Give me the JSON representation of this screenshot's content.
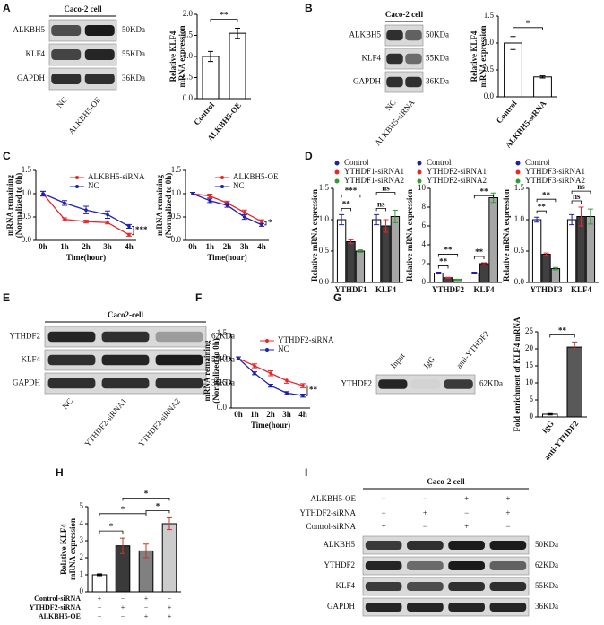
{
  "panel_labels": [
    "A",
    "B",
    "C",
    "D",
    "E",
    "F",
    "G",
    "H",
    "I"
  ],
  "blots": [
    {
      "title": "Caco-2 cell",
      "rows": [
        "ALKBH5",
        "KLF4",
        "GAPDH"
      ],
      "sizes": [
        "50KDa",
        "55KDa",
        "36KDa"
      ],
      "lanes": [
        "NC",
        "ALKBH5-OE"
      ]
    },
    {
      "title": "Caco-2 cell",
      "rows": [
        "ALKBH5",
        "KLF4",
        "GAPDH"
      ],
      "sizes": [
        "50KDa",
        "55KDa",
        "36KDa"
      ],
      "lanes": [
        "NC",
        "ALKBH5-siRNA"
      ]
    },
    {
      "title": "Caco2-cell",
      "rows": [
        "YTHDF2",
        "KLF4",
        "GAPDH"
      ],
      "sizes": [
        "62KDa",
        "55KDa",
        "36KDa"
      ],
      "lanes": [
        "NC",
        "YTHDF2-siRNA1",
        "YTHDF2-siRNA2"
      ]
    },
    {
      "rows": [
        "YTHDF2"
      ],
      "sizes": [
        "62KDa"
      ],
      "lanes": [
        "Input",
        "IgG",
        "anti-YTHDF2"
      ]
    },
    {
      "title": "Caco-2 cell",
      "conditions": [
        {
          "name": "ALKBH5-OE",
          "marks": [
            "−",
            "−",
            "+",
            "+"
          ]
        },
        {
          "name": "YTHDF2-siRNA",
          "marks": [
            "−",
            "+",
            "−",
            "+"
          ]
        },
        {
          "name": "Control-siRNA",
          "marks": [
            "+",
            "−",
            "+",
            "−"
          ]
        }
      ],
      "rows": [
        "ALKBH5",
        "YTHDF2",
        "KLF4",
        "GAPDH"
      ],
      "sizes": [
        "50KDa",
        "62KDa",
        "55KDa",
        "36KDa"
      ]
    }
  ],
  "chart_data": [
    {
      "type": "bar",
      "ylabel": [
        "Relative KLF4",
        "mRNA expression"
      ],
      "categories": [
        "Control",
        "ALKBH5-OE"
      ],
      "values": [
        1.0,
        1.55
      ],
      "errors": [
        0.12,
        0.12
      ],
      "bar_colors": [
        "#ffffff",
        "#ffffff"
      ],
      "ylim": [
        0,
        2
      ],
      "yticks": [
        {
          "value": 0,
          "label": "0.0"
        },
        {
          "value": 0.5,
          "label": "0.5"
        },
        {
          "value": 1,
          "label": "1.0"
        },
        {
          "value": 1.5,
          "label": "1.5"
        },
        {
          "value": 2,
          "label": "2.0"
        }
      ],
      "annotations": [
        "**"
      ]
    },
    {
      "type": "bar",
      "ylabel": [
        "Relative KLF4",
        "mRNA expression"
      ],
      "categories": [
        "Control",
        "ALKBH5-siRNA"
      ],
      "values": [
        1.0,
        0.37
      ],
      "errors": [
        0.12,
        0.02
      ],
      "bar_colors": [
        "#ffffff",
        "#ffffff"
      ],
      "ylim": [
        0,
        1.5
      ],
      "yticks": [
        {
          "value": 0,
          "label": "0.0"
        },
        {
          "value": 0.5,
          "label": "0.5"
        },
        {
          "value": 1,
          "label": "1.0"
        },
        {
          "value": 1.5,
          "label": "1.5"
        }
      ],
      "annotations": [
        "*"
      ]
    },
    {
      "type": "line",
      "ylabel": [
        "mRNA remaining",
        "(Normalized to 0h)"
      ],
      "xlabel": "Time(hour)",
      "categories": [
        "0h",
        "1h",
        "2h",
        "3h",
        "4h"
      ],
      "series": [
        {
          "name": "ALKBH5-siRNA",
          "color": "#e8262a",
          "values": [
            1.0,
            0.45,
            0.4,
            0.38,
            0.12
          ],
          "errors": [
            0.05,
            0.03,
            0.03,
            0.03,
            0.03
          ]
        },
        {
          "name": "NC",
          "color": "#1f1fb4",
          "values": [
            1.0,
            0.8,
            0.65,
            0.55,
            0.3
          ],
          "errors": [
            0.05,
            0.05,
            0.08,
            0.08,
            0.04
          ]
        }
      ],
      "ylim": [
        0,
        1.5
      ],
      "yticks": [
        {
          "value": 0,
          "label": "0.0"
        },
        {
          "value": 0.5,
          "label": "0.5"
        },
        {
          "value": 1,
          "label": "1.0"
        },
        {
          "value": 1.5,
          "label": "1.5"
        }
      ],
      "annotations": [
        "***"
      ]
    },
    {
      "type": "line",
      "ylabel": [
        "mRNA remaining",
        "(Normalized to 0h)"
      ],
      "xlabel": "Time(hour)",
      "categories": [
        "0h",
        "1h",
        "2h",
        "3h",
        "4h"
      ],
      "series": [
        {
          "name": "ALKBH5-OE",
          "color": "#e8262a",
          "values": [
            1.0,
            0.95,
            0.8,
            0.6,
            0.4
          ],
          "errors": [
            0.03,
            0.04,
            0.04,
            0.05,
            0.04
          ]
        },
        {
          "name": "NC",
          "color": "#1f1fb4",
          "values": [
            1.0,
            0.85,
            0.75,
            0.5,
            0.33
          ],
          "errors": [
            0.03,
            0.04,
            0.04,
            0.05,
            0.03
          ]
        }
      ],
      "ylim": [
        0,
        1.5
      ],
      "yticks": [
        {
          "value": 0,
          "label": "0.0"
        },
        {
          "value": 0.5,
          "label": "0.5"
        },
        {
          "value": 1,
          "label": "1.0"
        },
        {
          "value": 1.5,
          "label": "1.5"
        }
      ],
      "annotations": [
        "*"
      ]
    },
    {
      "type": "grouped",
      "ylabel": [
        "Relative mRNA expression"
      ],
      "categories": [
        "YTHDF1",
        "KLF4"
      ],
      "series": [
        {
          "name": "Control",
          "color": "#1f1fb4",
          "fill": "#ffffff",
          "values": [
            1.0,
            1.0
          ],
          "errors": [
            0.08,
            0.08
          ]
        },
        {
          "name": "YTHDF1-siRNA1",
          "color": "#e8262a",
          "fill": "#404040",
          "values": [
            0.65,
            0.9
          ],
          "errors": [
            0.03,
            0.1
          ]
        },
        {
          "name": "YTHDF1-siRNA2",
          "color": "#2ca02c",
          "fill": "#a6a6a6",
          "values": [
            0.5,
            1.05
          ],
          "errors": [
            0.02,
            0.1
          ]
        }
      ],
      "ylim": [
        0,
        1.5
      ],
      "yticks": [
        {
          "value": 0,
          "label": "0.0"
        },
        {
          "value": 0.5,
          "label": "0.5"
        },
        {
          "value": 1,
          "label": "1.0"
        },
        {
          "value": 1.5,
          "label": "1.5"
        }
      ],
      "annotations": [
        "**",
        "***",
        "ns",
        "ns"
      ]
    },
    {
      "type": "grouped",
      "ylabel": [
        "Relative mRNA expression"
      ],
      "categories": [
        "YTHDF2",
        "KLF4"
      ],
      "series": [
        {
          "name": "Control",
          "color": "#1f1fb4",
          "fill": "#ffffff",
          "values": [
            1.0,
            1.0
          ],
          "errors": [
            0.1,
            0.1
          ]
        },
        {
          "name": "YTHDF2-siRNA1",
          "color": "#e8262a",
          "fill": "#404040",
          "values": [
            0.5,
            2.0
          ],
          "errors": [
            0.05,
            0.1
          ]
        },
        {
          "name": "YTHDF2-siRNA2",
          "color": "#2ca02c",
          "fill": "#a6a6a6",
          "values": [
            0.3,
            9.0
          ],
          "errors": [
            0.05,
            0.5
          ]
        }
      ],
      "ylim": [
        0,
        10
      ],
      "yticks": [
        0,
        2,
        4,
        6,
        8,
        10
      ],
      "annotations": [
        "**",
        "**",
        "**",
        "**"
      ]
    },
    {
      "type": "grouped",
      "ylabel": [
        "Relative mRNA expression"
      ],
      "categories": [
        "YTHDF3",
        "KLF4"
      ],
      "series": [
        {
          "name": "Control",
          "color": "#1f1fb4",
          "fill": "#ffffff",
          "values": [
            1.0,
            1.0
          ],
          "errors": [
            0.04,
            0.08
          ]
        },
        {
          "name": "YTHDF3-siRNA1",
          "color": "#e8262a",
          "fill": "#404040",
          "values": [
            0.45,
            1.05
          ],
          "errors": [
            0.02,
            0.15
          ]
        },
        {
          "name": "YTHDF3-siRNA2",
          "color": "#2ca02c",
          "fill": "#a6a6a6",
          "values": [
            0.22,
            1.05
          ],
          "errors": [
            0.02,
            0.12
          ]
        }
      ],
      "ylim": [
        0,
        1.5
      ],
      "yticks": [
        {
          "value": 0,
          "label": "0.0"
        },
        {
          "value": 0.5,
          "label": "0.5"
        },
        {
          "value": 1,
          "label": "1.0"
        },
        {
          "value": 1.5,
          "label": "1.5"
        }
      ],
      "annotations": [
        "**",
        "**",
        "ns",
        "ns"
      ]
    },
    {
      "type": "line",
      "ylabel": [
        "mRNA remaining",
        "(Normalized to 0h)"
      ],
      "xlabel": "Time(hour)",
      "categories": [
        "0h",
        "1h",
        "2h",
        "3h",
        "4h"
      ],
      "series": [
        {
          "name": "YTHDF2-siRNA",
          "color": "#e8262a",
          "values": [
            1.0,
            0.85,
            0.7,
            0.55,
            0.45
          ],
          "errors": [
            0.03,
            0.04,
            0.05,
            0.05,
            0.04
          ]
        },
        {
          "name": "NC",
          "color": "#1f1fb4",
          "values": [
            1.0,
            0.7,
            0.45,
            0.3,
            0.25
          ],
          "errors": [
            0.03,
            0.03,
            0.03,
            0.03,
            0.03
          ]
        }
      ],
      "ylim": [
        0,
        1.5
      ],
      "yticks": [
        {
          "value": 0,
          "label": "0.0"
        },
        {
          "value": 0.5,
          "label": "0.5"
        },
        {
          "value": 1,
          "label": "1.0"
        },
        {
          "value": 1.5,
          "label": "1.5"
        }
      ],
      "annotations": [
        "**"
      ]
    },
    {
      "type": "bar",
      "ylabel": [
        "Fold enrichment of KLF4 mRNA"
      ],
      "categories": [
        "IgG",
        "anti-YTHDF2"
      ],
      "values": [
        0.8,
        20.5
      ],
      "errors": [
        0.2,
        1.5
      ],
      "bar_colors": [
        "#ffffff",
        "#595959"
      ],
      "ylim": [
        0,
        25
      ],
      "yticks": [
        0,
        5,
        10,
        15,
        20,
        25
      ],
      "annotations": [
        "**"
      ]
    },
    {
      "type": "bar",
      "ylabel": [
        "Relative KLF4",
        "mRNA expression"
      ],
      "categories": [
        null,
        null,
        null,
        null
      ],
      "values": [
        1.0,
        2.7,
        2.4,
        4.0
      ],
      "errors": [
        0.05,
        0.45,
        0.4,
        0.35
      ],
      "bar_colors": [
        "#ffffff",
        "#3a3a3a",
        "#808080",
        "#cccccc"
      ],
      "ylim": [
        0,
        5
      ],
      "yticks": [
        0,
        1,
        2,
        3,
        4,
        5
      ],
      "annotations": [
        "*",
        "*",
        "*",
        "*"
      ],
      "conditions": [
        {
          "name": "Control-siRNA",
          "marks": [
            "+",
            "−",
            "+",
            "−"
          ]
        },
        {
          "name": "YTHDF2-siRNA",
          "marks": [
            "−",
            "+",
            "−",
            "+"
          ]
        },
        {
          "name": "ALKBH5-OE",
          "marks": [
            "−",
            "−",
            "+",
            "+"
          ]
        }
      ]
    }
  ]
}
